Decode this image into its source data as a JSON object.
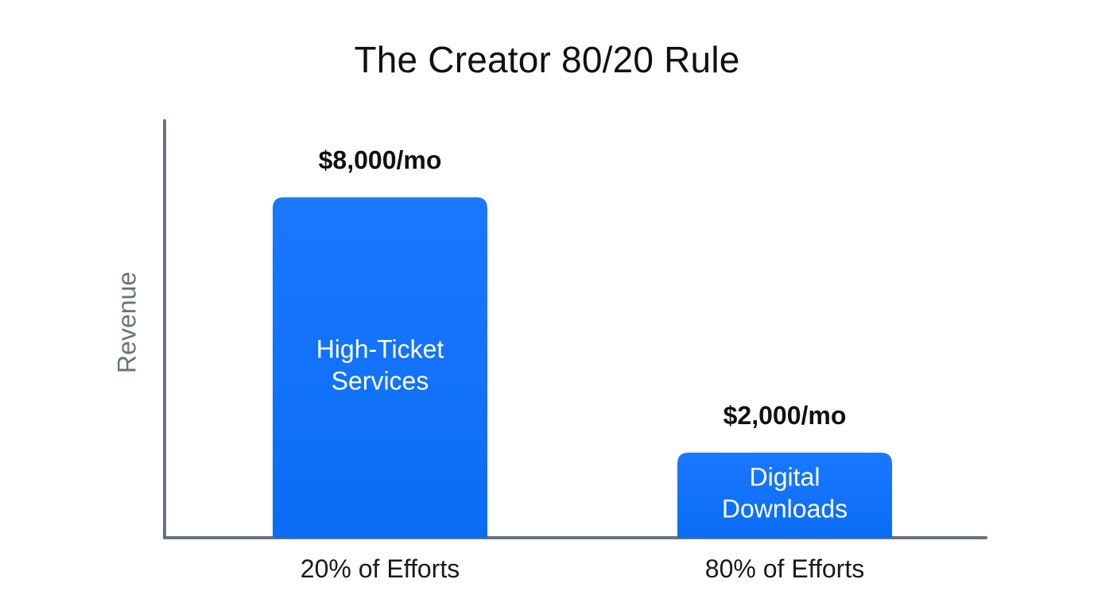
{
  "chart_data": {
    "type": "bar",
    "title": "The Creator 80/20 Rule",
    "ylabel": "Revenue",
    "xlabel": "",
    "categories": [
      "20% of Efforts",
      "80% of Efforts"
    ],
    "values": [
      8000,
      2000
    ],
    "value_labels": [
      "$8,000/mo",
      "$2,000/mo"
    ],
    "bar_labels": [
      [
        "High-Ticket",
        "Services"
      ],
      [
        "Digital",
        "Downloads"
      ]
    ],
    "ylim": [
      0,
      9800
    ],
    "grid": false,
    "legend": "none",
    "bar_color": "#0a6cf5",
    "axis_color": "#6b7280"
  }
}
